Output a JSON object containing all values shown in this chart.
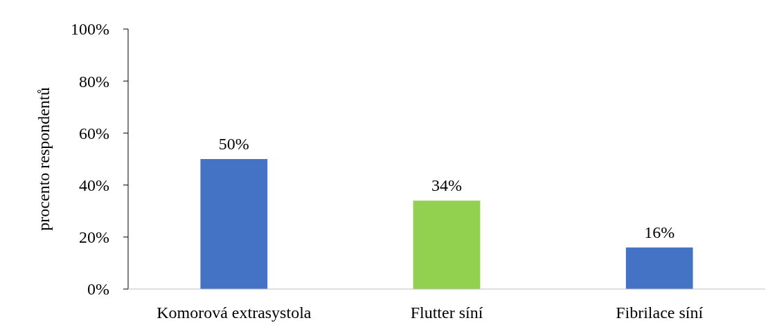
{
  "chart_data": {
    "type": "bar",
    "ylabel": "procento respondentů",
    "categories": [
      "Komorová extrasystola",
      "Flutter síní",
      "Fibrilace síní"
    ],
    "values": [
      50,
      34,
      16
    ],
    "colors": [
      "#4472c4",
      "#92d050",
      "#4472c4"
    ],
    "value_labels": [
      "50%",
      "34%",
      "16%"
    ],
    "ylim": [
      0,
      100
    ],
    "yticks": [
      {
        "value": 0,
        "label": "0%"
      },
      {
        "value": 20,
        "label": "20%"
      },
      {
        "value": 40,
        "label": "40%"
      },
      {
        "value": 60,
        "label": "60%"
      },
      {
        "value": 80,
        "label": "80%"
      },
      {
        "value": 100,
        "label": "100%"
      }
    ],
    "grid": false
  }
}
